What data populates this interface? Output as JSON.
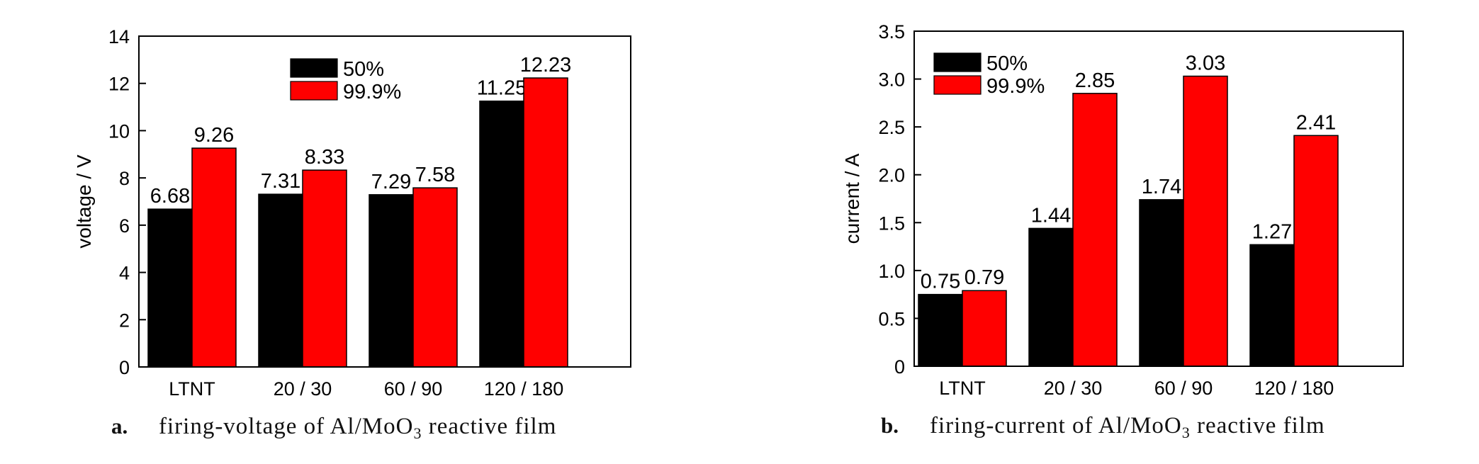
{
  "colors": {
    "series_a": "#000000",
    "series_b": "#ff0000"
  },
  "chart_data": [
    {
      "type": "bar",
      "panel_letter": "a.",
      "caption": {
        "prefix": "firing-voltage of Al/MoO",
        "subscript": "3",
        "suffix": " reactive film"
      },
      "categories": [
        "LTNT",
        "20 / 30",
        "60 / 90",
        "120 / 180"
      ],
      "series": [
        {
          "name": "50%",
          "values": [
            6.68,
            7.31,
            7.29,
            11.25
          ],
          "labels": [
            "6.68",
            "7.31",
            "7.29",
            "11.25"
          ]
        },
        {
          "name": "99.9%",
          "values": [
            9.26,
            8.33,
            7.58,
            12.23
          ],
          "labels": [
            "9.26",
            "8.33",
            "7.58",
            "12.23"
          ]
        }
      ],
      "ylabel": "voltage / V",
      "xlabel": "",
      "ylim": [
        0,
        14
      ],
      "yticks": [
        "0",
        "2",
        "4",
        "6",
        "8",
        "10",
        "12",
        "14"
      ],
      "legend_position": "top-center",
      "grid": false
    },
    {
      "type": "bar",
      "panel_letter": "b.",
      "caption": {
        "prefix": "firing-current of Al/MoO",
        "subscript": "3",
        "suffix": " reactive film"
      },
      "categories": [
        "LTNT",
        "20 / 30",
        "60 / 90",
        "120 / 180"
      ],
      "series": [
        {
          "name": "50%",
          "values": [
            0.75,
            1.44,
            1.74,
            1.27
          ],
          "labels": [
            "0.75",
            "1.44",
            "1.74",
            "1.27"
          ]
        },
        {
          "name": "99.9%",
          "values": [
            0.79,
            2.85,
            3.03,
            2.41
          ],
          "labels": [
            "0.79",
            "2.85",
            "3.03",
            "2.41"
          ]
        }
      ],
      "ylabel": "current / A",
      "xlabel": "",
      "ylim": [
        0,
        3.5
      ],
      "yticks": [
        "0",
        "0.5",
        "1.0",
        "1.5",
        "2.0",
        "2.5",
        "3.0",
        "3.5"
      ],
      "legend_position": "top-left",
      "grid": false
    }
  ]
}
